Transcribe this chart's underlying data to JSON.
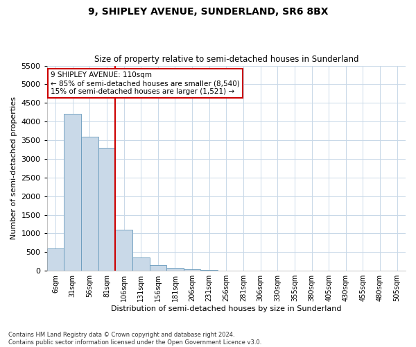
{
  "title1": "9, SHIPLEY AVENUE, SUNDERLAND, SR6 8BX",
  "title2": "Size of property relative to semi-detached houses in Sunderland",
  "xlabel": "Distribution of semi-detached houses by size in Sunderland",
  "ylabel": "Number of semi-detached properties",
  "footnote": "Contains HM Land Registry data © Crown copyright and database right 2024.\nContains public sector information licensed under the Open Government Licence v3.0.",
  "bar_labels": [
    "6sqm",
    "31sqm",
    "56sqm",
    "81sqm",
    "106sqm",
    "131sqm",
    "156sqm",
    "181sqm",
    "206sqm",
    "231sqm",
    "256sqm",
    "281sqm",
    "306sqm",
    "330sqm",
    "355sqm",
    "380sqm",
    "405sqm",
    "430sqm",
    "455sqm",
    "480sqm",
    "505sqm"
  ],
  "bar_values": [
    600,
    4200,
    3600,
    3300,
    1100,
    350,
    150,
    75,
    50,
    30,
    8,
    4,
    2,
    1,
    1,
    0,
    0,
    0,
    0,
    0,
    0
  ],
  "bar_color": "#c9d9e8",
  "bar_edge_color": "#6699bb",
  "vline_index": 4,
  "property_size": "110sqm",
  "pct_smaller": 85,
  "n_smaller": "8,540",
  "pct_larger": 15,
  "n_larger": "1,521",
  "annotation_box_color": "#ffffff",
  "annotation_box_edge": "#cc0000",
  "vline_color": "#cc0000",
  "ylim": [
    0,
    5500
  ],
  "yticks": [
    0,
    500,
    1000,
    1500,
    2000,
    2500,
    3000,
    3500,
    4000,
    4500,
    5000,
    5500
  ],
  "background_color": "#ffffff",
  "grid_color": "#c8d8e8"
}
